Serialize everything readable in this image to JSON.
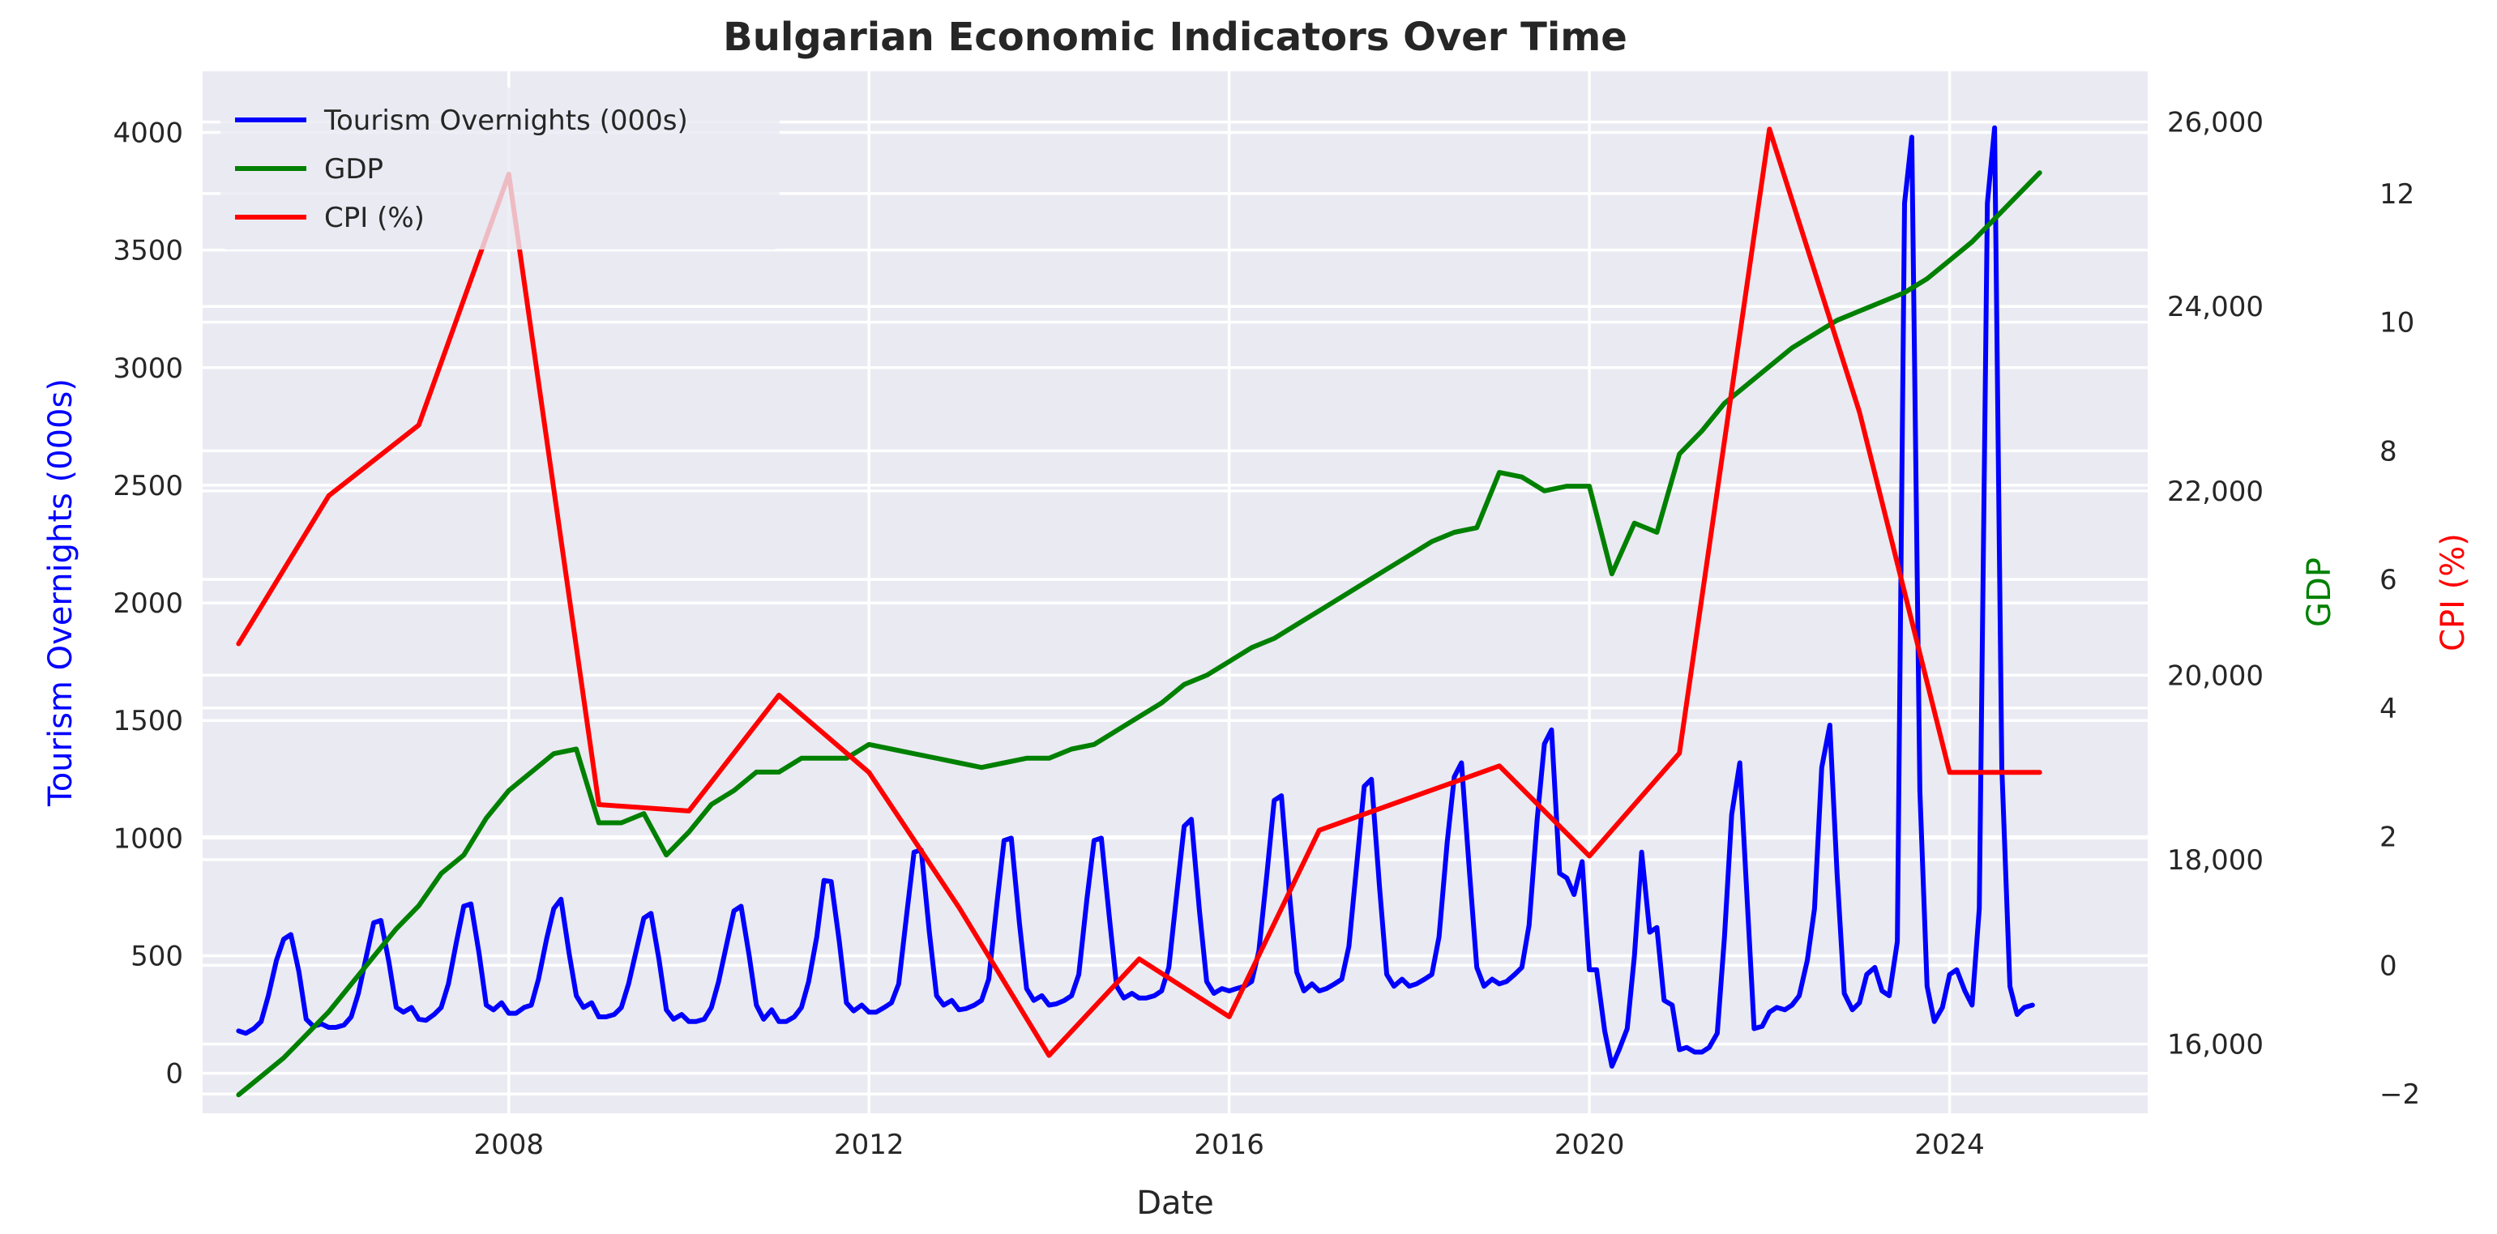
{
  "chart_data": {
    "type": "line",
    "title": "Bulgarian Economic Indicators Over Time",
    "xlabel": "Date",
    "xlim": [
      2004.6,
      2026.2
    ],
    "x_ticks": [
      2008,
      2012,
      2016,
      2020,
      2024
    ],
    "axes": {
      "left": {
        "label": "Tourism Overnights (000s)",
        "color": "#0000ff",
        "ylim": [
          -170,
          4260
        ],
        "ticks": [
          0,
          500,
          1000,
          1500,
          2000,
          2500,
          3000,
          3500,
          4000
        ],
        "tick_labels": [
          "0",
          "500",
          "1000",
          "1500",
          "2000",
          "2500",
          "3000",
          "3500",
          "4000"
        ]
      },
      "right1": {
        "label": "GDP",
        "color": "#008000",
        "ylim": [
          15250,
          26550
        ],
        "ticks": [
          16000,
          18000,
          20000,
          22000,
          24000,
          26000
        ],
        "tick_labels": [
          "16,000",
          "18,000",
          "20,000",
          "22,000",
          "24,000",
          "26,000"
        ]
      },
      "right2": {
        "label": "CPI (%)",
        "color": "#ff0000",
        "ylim": [
          -2.3,
          13.9
        ],
        "ticks": [
          -2,
          0,
          2,
          4,
          6,
          8,
          10,
          12
        ],
        "tick_labels": [
          "−2",
          "0",
          "2",
          "4",
          "6",
          "8",
          "10",
          "12"
        ]
      }
    },
    "grid": true,
    "legend": {
      "position": "top-left",
      "entries": [
        {
          "name": "Tourism Overnights (000s)",
          "color": "#0000ff"
        },
        {
          "name": "GDP",
          "color": "#008000"
        },
        {
          "name": "CPI (%)",
          "color": "#ff0000"
        }
      ]
    },
    "series": [
      {
        "name": "Tourism Overnights (000s)",
        "axis": "left",
        "color": "#0000ff",
        "x": [
          2005.0,
          2005.08,
          2005.17,
          2005.25,
          2005.33,
          2005.42,
          2005.5,
          2005.58,
          2005.67,
          2005.75,
          2005.83,
          2005.92,
          2006.0,
          2006.08,
          2006.17,
          2006.25,
          2006.33,
          2006.42,
          2006.5,
          2006.58,
          2006.67,
          2006.75,
          2006.83,
          2006.92,
          2007.0,
          2007.08,
          2007.17,
          2007.25,
          2007.33,
          2007.42,
          2007.5,
          2007.58,
          2007.67,
          2007.75,
          2007.83,
          2007.92,
          2008.0,
          2008.08,
          2008.17,
          2008.25,
          2008.33,
          2008.42,
          2008.5,
          2008.58,
          2008.67,
          2008.75,
          2008.83,
          2008.92,
          2009.0,
          2009.08,
          2009.17,
          2009.25,
          2009.33,
          2009.42,
          2009.5,
          2009.58,
          2009.67,
          2009.75,
          2009.83,
          2009.92,
          2010.0,
          2010.08,
          2010.17,
          2010.25,
          2010.33,
          2010.42,
          2010.5,
          2010.58,
          2010.67,
          2010.75,
          2010.83,
          2010.92,
          2011.0,
          2011.08,
          2011.17,
          2011.25,
          2011.33,
          2011.42,
          2011.5,
          2011.58,
          2011.67,
          2011.75,
          2011.83,
          2011.92,
          2012.0,
          2012.08,
          2012.17,
          2012.25,
          2012.33,
          2012.42,
          2012.5,
          2012.58,
          2012.67,
          2012.75,
          2012.83,
          2012.92,
          2013.0,
          2013.08,
          2013.17,
          2013.25,
          2013.33,
          2013.42,
          2013.5,
          2013.58,
          2013.67,
          2013.75,
          2013.83,
          2013.92,
          2014.0,
          2014.08,
          2014.17,
          2014.25,
          2014.33,
          2014.42,
          2014.5,
          2014.58,
          2014.67,
          2014.75,
          2014.83,
          2014.92,
          2015.0,
          2015.08,
          2015.17,
          2015.25,
          2015.33,
          2015.42,
          2015.5,
          2015.58,
          2015.67,
          2015.75,
          2015.83,
          2015.92,
          2016.0,
          2016.08,
          2016.17,
          2016.25,
          2016.33,
          2016.42,
          2016.5,
          2016.58,
          2016.67,
          2016.75,
          2016.83,
          2016.92,
          2017.0,
          2017.08,
          2017.17,
          2017.25,
          2017.33,
          2017.42,
          2017.5,
          2017.58,
          2017.67,
          2017.75,
          2017.83,
          2017.92,
          2018.0,
          2018.08,
          2018.17,
          2018.25,
          2018.33,
          2018.42,
          2018.5,
          2018.58,
          2018.67,
          2018.75,
          2018.83,
          2018.92,
          2019.0,
          2019.08,
          2019.17,
          2019.25,
          2019.33,
          2019.42,
          2019.5,
          2019.58,
          2019.67,
          2019.75,
          2019.83,
          2019.92,
          2020.0,
          2020.08,
          2020.17,
          2020.25,
          2020.33,
          2020.42,
          2020.5,
          2020.58,
          2020.67,
          2020.75,
          2020.83,
          2020.92,
          2021.0,
          2021.08,
          2021.17,
          2021.25,
          2021.33,
          2021.42,
          2021.5,
          2021.58,
          2021.67,
          2021.75,
          2021.83,
          2021.92,
          2022.0,
          2022.08,
          2022.17,
          2022.25,
          2022.33,
          2022.42,
          2022.5,
          2022.58,
          2022.67,
          2022.75,
          2022.83,
          2022.92,
          2023.0,
          2023.08,
          2023.17,
          2023.25,
          2023.33,
          2023.42,
          2023.5,
          2023.58,
          2023.67,
          2023.75,
          2023.83,
          2023.92,
          2024.0,
          2024.08,
          2024.17,
          2024.25,
          2024.33,
          2024.42,
          2024.5,
          2024.58,
          2024.67,
          2024.75,
          2024.83,
          2024.92
        ],
        "y": [
          180,
          170,
          190,
          220,
          330,
          480,
          570,
          590,
          430,
          230,
          200,
          210,
          195,
          195,
          205,
          240,
          340,
          500,
          640,
          650,
          470,
          280,
          260,
          280,
          230,
          225,
          250,
          280,
          380,
          560,
          710,
          720,
          510,
          290,
          270,
          300,
          255,
          255,
          280,
          290,
          400,
          570,
          700,
          740,
          510,
          330,
          280,
          300,
          240,
          240,
          250,
          280,
          380,
          530,
          660,
          680,
          480,
          270,
          230,
          250,
          220,
          220,
          230,
          280,
          390,
          550,
          690,
          710,
          500,
          290,
          230,
          270,
          220,
          220,
          240,
          280,
          390,
          580,
          820,
          815,
          560,
          300,
          265,
          290,
          260,
          260,
          280,
          300,
          380,
          680,
          940,
          950,
          600,
          330,
          290,
          310,
          270,
          275,
          290,
          310,
          400,
          720,
          990,
          1000,
          640,
          360,
          310,
          330,
          290,
          295,
          310,
          330,
          420,
          740,
          990,
          1000,
          660,
          370,
          320,
          340,
          320,
          320,
          330,
          350,
          450,
          770,
          1050,
          1080,
          690,
          390,
          340,
          360,
          350,
          360,
          370,
          390,
          520,
          850,
          1160,
          1180,
          760,
          430,
          350,
          380,
          350,
          360,
          380,
          400,
          540,
          900,
          1220,
          1250,
          790,
          420,
          370,
          400,
          370,
          380,
          400,
          420,
          580,
          980,
          1260,
          1320,
          850,
          450,
          370,
          400,
          380,
          390,
          420,
          450,
          630,
          1080,
          1400,
          1460,
          850,
          830,
          760,
          900,
          440,
          440,
          180,
          30,
          100,
          190,
          500,
          940,
          600,
          620,
          310,
          290,
          100,
          110,
          90,
          90,
          110,
          170,
          580,
          1100,
          1320,
          750,
          190,
          200,
          260,
          280,
          270,
          290,
          330,
          480,
          700,
          1300,
          1480,
          850,
          340,
          270,
          300,
          420,
          450,
          350,
          330,
          560,
          3700,
          3980,
          1200,
          370,
          220,
          280,
          420,
          440,
          350,
          290,
          700,
          3700,
          4020,
          1300,
          370,
          250,
          280,
          290
        ]
      },
      {
        "name": "GDP",
        "axis": "right1",
        "color": "#008000",
        "x": [
          2005.0,
          2005.25,
          2005.5,
          2005.75,
          2006.0,
          2006.25,
          2006.5,
          2006.75,
          2007.0,
          2007.25,
          2007.5,
          2007.75,
          2008.0,
          2008.25,
          2008.5,
          2008.75,
          2009.0,
          2009.25,
          2009.5,
          2009.75,
          2010.0,
          2010.25,
          2010.5,
          2010.75,
          2011.0,
          2011.25,
          2011.5,
          2011.75,
          2012.0,
          2012.25,
          2012.5,
          2012.75,
          2013.0,
          2013.25,
          2013.5,
          2013.75,
          2014.0,
          2014.25,
          2014.5,
          2014.75,
          2015.0,
          2015.25,
          2015.5,
          2015.75,
          2016.0,
          2016.25,
          2016.5,
          2016.75,
          2017.0,
          2017.25,
          2017.5,
          2017.75,
          2018.0,
          2018.25,
          2018.5,
          2018.75,
          2019.0,
          2019.25,
          2019.5,
          2019.75,
          2020.0,
          2020.25,
          2020.5,
          2020.75,
          2021.0,
          2021.25,
          2021.5,
          2021.75,
          2022.0,
          2022.25,
          2022.5,
          2022.75,
          2023.0,
          2023.25,
          2023.5,
          2023.75,
          2024.0,
          2024.25,
          2024.5,
          2024.75,
          2025.0
        ],
        "y": [
          15450,
          15650,
          15850,
          16100,
          16350,
          16650,
          16950,
          17250,
          17500,
          17850,
          18050,
          18450,
          18750,
          18950,
          19150,
          19200,
          18400,
          18400,
          18500,
          18050,
          18300,
          18600,
          18750,
          18950,
          18950,
          19100,
          19100,
          19100,
          19250,
          19200,
          19150,
          19100,
          19050,
          19000,
          19050,
          19100,
          19100,
          19200,
          19250,
          19400,
          19550,
          19700,
          19900,
          20000,
          20150,
          20300,
          20400,
          20550,
          20700,
          20850,
          21000,
          21150,
          21300,
          21450,
          21550,
          21600,
          22200,
          22150,
          22000,
          22050,
          22050,
          21100,
          21650,
          21550,
          22400,
          22650,
          22950,
          23150,
          23350,
          23550,
          23700,
          23850,
          23950,
          24050,
          24150,
          24300,
          24500,
          24700,
          24950,
          25200,
          25450
        ]
      },
      {
        "name": "CPI (%)",
        "axis": "right2",
        "color": "#ff0000",
        "x": [
          2005,
          2006,
          2007,
          2008,
          2009,
          2010,
          2011,
          2012,
          2013,
          2014,
          2015,
          2016,
          2017,
          2018,
          2019,
          2020,
          2021,
          2022,
          2023,
          2024,
          2025
        ],
        "y": [
          5.0,
          7.3,
          8.4,
          12.3,
          2.5,
          2.4,
          4.2,
          3.0,
          0.9,
          -1.4,
          0.1,
          -0.8,
          2.1,
          2.6,
          3.1,
          1.7,
          3.3,
          13.0,
          8.6,
          3.0,
          3.0
        ]
      }
    ]
  }
}
